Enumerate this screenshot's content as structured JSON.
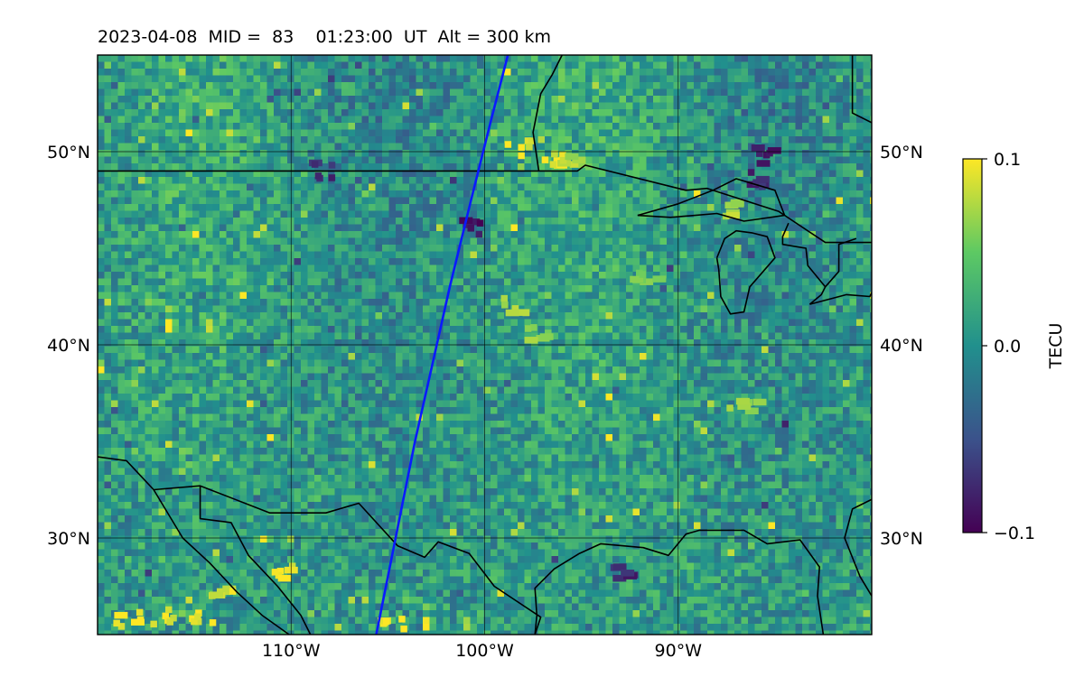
{
  "title": "2023-04-08  MID =  83    01:23:00  UT  Alt = 300 km",
  "map": {
    "lon_range": [
      -120,
      -80
    ],
    "lat_range": [
      25,
      55
    ],
    "lat_ticks": [
      {
        "value": 30,
        "label": "30°N"
      },
      {
        "value": 40,
        "label": "40°N"
      },
      {
        "value": 50,
        "label": "50°N"
      }
    ],
    "lon_ticks": [
      {
        "value": -110,
        "label": "110°W"
      },
      {
        "value": -100,
        "label": "100°W"
      },
      {
        "value": -90,
        "label": "90°W"
      }
    ],
    "gridlines": true,
    "field": "TEC perturbation"
  },
  "colorbar": {
    "label": "TECU",
    "vmin": -0.1,
    "vmax": 0.1,
    "ticks": [
      {
        "value": 0.1,
        "label": "0.1"
      },
      {
        "value": 0.0,
        "label": "0.0"
      },
      {
        "value": -0.1,
        "label": "−0.1"
      }
    ],
    "colormap": [
      "#440154",
      "#3b528b",
      "#21908d",
      "#5dc963",
      "#fde725"
    ]
  },
  "track": {
    "color": "#0a1aff",
    "points": [
      [
        -105.6,
        25.0
      ],
      [
        -105.0,
        28.0
      ],
      [
        -104.4,
        31.0
      ],
      [
        -103.6,
        35.0
      ],
      [
        -102.7,
        39.0
      ],
      [
        -101.8,
        43.0
      ],
      [
        -100.7,
        47.5
      ],
      [
        -99.7,
        51.5
      ],
      [
        -98.8,
        55.0
      ]
    ]
  },
  "hotspots": [
    {
      "lon": -118.5,
      "lat": 26.0,
      "value": 0.1
    },
    {
      "lon": -116.6,
      "lat": 26.1,
      "value": 0.1
    },
    {
      "lon": -114.8,
      "lat": 26.0,
      "value": 0.1
    },
    {
      "lon": -113.7,
      "lat": 27.4,
      "value": 0.09
    },
    {
      "lon": -110.7,
      "lat": 28.4,
      "value": 0.1
    },
    {
      "lon": -104.9,
      "lat": 25.6,
      "value": 0.1
    },
    {
      "lon": -98.3,
      "lat": 50.3,
      "value": 0.1
    },
    {
      "lon": -96.5,
      "lat": 49.7,
      "value": 0.1
    },
    {
      "lon": -95.7,
      "lat": 49.5,
      "value": 0.08
    },
    {
      "lon": -87.6,
      "lat": 47.1,
      "value": 0.08
    },
    {
      "lon": -100.7,
      "lat": 46.3,
      "value": -0.1
    },
    {
      "lon": -93.0,
      "lat": 28.5,
      "value": -0.08
    },
    {
      "lon": -85.6,
      "lat": 50.0,
      "value": -0.09
    },
    {
      "lon": -86.0,
      "lat": 48.7,
      "value": -0.08
    },
    {
      "lon": -108.5,
      "lat": 49.2,
      "value": -0.08
    },
    {
      "lon": -98.5,
      "lat": 42.2,
      "value": 0.08
    },
    {
      "lon": -97.4,
      "lat": 40.7,
      "value": 0.07
    },
    {
      "lon": -91.8,
      "lat": 43.8,
      "value": 0.06
    },
    {
      "lon": -86.8,
      "lat": 37.0,
      "value": 0.07
    }
  ],
  "boundaries": [
    [
      [
        -120,
        49.0
      ],
      [
        -95.2,
        49.0
      ],
      [
        -94.8,
        49.3
      ],
      [
        -89.6,
        48.0
      ],
      [
        -88.5,
        48.1
      ],
      [
        -84.8,
        46.9
      ],
      [
        -83.6,
        46.1
      ],
      [
        -82.4,
        45.3
      ],
      [
        -80,
        45.3
      ]
    ],
    [
      [
        -97.2,
        49.0
      ],
      [
        -97.5,
        51.0
      ],
      [
        -97.1,
        53.0
      ],
      [
        -96.5,
        54.0
      ],
      [
        -96.0,
        55.0
      ]
    ],
    [
      [
        -81.0,
        55.0
      ],
      [
        -81.0,
        52.0
      ],
      [
        -80,
        51.5
      ]
    ],
    [
      [
        -120,
        34.2
      ],
      [
        -118.5,
        34.0
      ],
      [
        -117.1,
        32.5
      ],
      [
        -114.7,
        32.7
      ],
      [
        -111.1,
        31.3
      ],
      [
        -108.2,
        31.3
      ],
      [
        -106.5,
        31.8
      ],
      [
        -104.5,
        29.6
      ],
      [
        -103.1,
        29.0
      ],
      [
        -102.4,
        29.8
      ],
      [
        -100.8,
        29.2
      ],
      [
        -99.5,
        27.5
      ],
      [
        -97.1,
        25.9
      ],
      [
        -97.4,
        25.0
      ]
    ],
    [
      [
        -117.1,
        32.5
      ],
      [
        -115.6,
        30.0
      ],
      [
        -114.2,
        28.7
      ],
      [
        -112.8,
        27.2
      ],
      [
        -111.5,
        26.0
      ],
      [
        -110.1,
        25.0
      ]
    ],
    [
      [
        -114.7,
        32.7
      ],
      [
        -114.7,
        31.0
      ],
      [
        -113.1,
        30.8
      ],
      [
        -112.2,
        29.1
      ],
      [
        -110.7,
        27.5
      ],
      [
        -109.5,
        26.0
      ],
      [
        -109.0,
        25.0
      ]
    ],
    [
      [
        -80,
        32.0
      ],
      [
        -81.0,
        31.5
      ],
      [
        -81.4,
        30.0
      ],
      [
        -80.6,
        28.0
      ],
      [
        -80.0,
        27.0
      ]
    ],
    [
      [
        -82.5,
        25.0
      ],
      [
        -82.8,
        27.0
      ],
      [
        -82.7,
        28.5
      ],
      [
        -83.7,
        29.9
      ],
      [
        -85.4,
        29.7
      ],
      [
        -86.6,
        30.4
      ],
      [
        -88.9,
        30.4
      ],
      [
        -89.6,
        30.2
      ],
      [
        -90.5,
        29.1
      ],
      [
        -91.8,
        29.5
      ],
      [
        -94.0,
        29.7
      ],
      [
        -95.1,
        29.2
      ],
      [
        -96.4,
        28.4
      ],
      [
        -97.4,
        27.4
      ],
      [
        -97.3,
        26.0
      ],
      [
        -97.4,
        25.0
      ]
    ],
    [
      [
        -88.0,
        44.5
      ],
      [
        -87.6,
        45.5
      ],
      [
        -87.0,
        45.9
      ],
      [
        -86.2,
        45.8
      ],
      [
        -85.4,
        45.6
      ],
      [
        -85.0,
        44.5
      ],
      [
        -86.3,
        43.0
      ],
      [
        -86.6,
        41.7
      ],
      [
        -87.3,
        41.6
      ],
      [
        -87.8,
        42.5
      ],
      [
        -87.9,
        43.9
      ],
      [
        -88.0,
        44.5
      ]
    ],
    [
      [
        -84.3,
        46.3
      ],
      [
        -84.6,
        45.6
      ],
      [
        -84.6,
        45.2
      ],
      [
        -83.4,
        45.0
      ],
      [
        -83.3,
        44.1
      ],
      [
        -82.4,
        43.0
      ],
      [
        -82.6,
        42.6
      ],
      [
        -83.2,
        42.1
      ]
    ],
    [
      [
        -92.1,
        46.7
      ],
      [
        -90.0,
        47.3
      ],
      [
        -88.2,
        48.0
      ],
      [
        -87.0,
        48.6
      ],
      [
        -85.0,
        48.0
      ],
      [
        -84.5,
        46.7
      ],
      [
        -86.6,
        46.4
      ],
      [
        -88.0,
        46.8
      ],
      [
        -90.4,
        46.6
      ],
      [
        -92.1,
        46.7
      ]
    ],
    [
      [
        -83.2,
        42.1
      ],
      [
        -81.3,
        42.6
      ],
      [
        -80.1,
        42.5
      ],
      [
        -79.9,
        42.9
      ]
    ],
    [
      [
        -82.4,
        43.0
      ],
      [
        -81.7,
        43.8
      ],
      [
        -81.7,
        45.2
      ],
      [
        -80.8,
        45.5
      ]
    ]
  ]
}
